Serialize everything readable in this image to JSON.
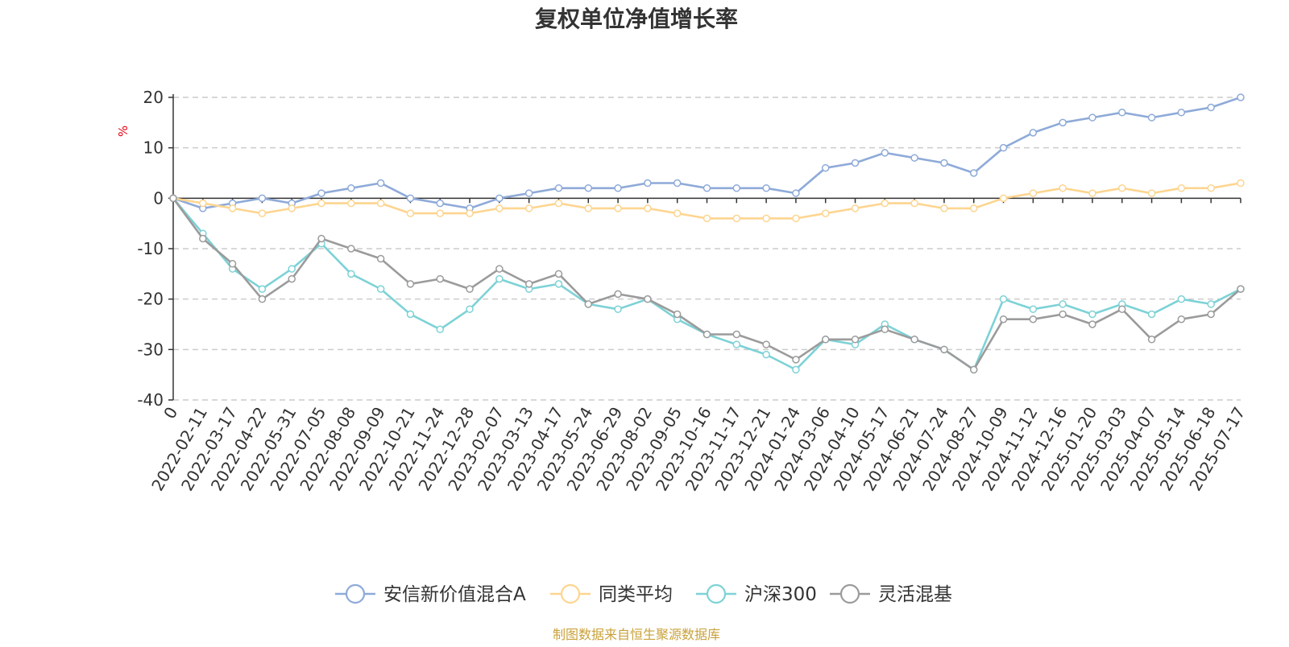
{
  "chart_data": {
    "type": "line",
    "title": "复权单位净值增长率",
    "ylabel": "%",
    "ylim": [
      -40,
      20
    ],
    "yticks": [
      -40,
      -30,
      -20,
      -10,
      0,
      10,
      20
    ],
    "x": [
      "0",
      "2022-02-11",
      "2022-03-17",
      "2022-04-22",
      "2022-05-31",
      "2022-07-05",
      "2022-08-08",
      "2022-09-09",
      "2022-10-21",
      "2022-11-24",
      "2022-12-28",
      "2023-02-07",
      "2023-03-13",
      "2023-04-17",
      "2023-05-24",
      "2023-06-29",
      "2023-08-02",
      "2023-09-05",
      "2023-10-16",
      "2023-11-17",
      "2023-12-21",
      "2024-01-24",
      "2024-03-06",
      "2024-04-10",
      "2024-05-17",
      "2024-06-21",
      "2024-07-24",
      "2024-08-27",
      "2024-10-09",
      "2024-11-12",
      "2024-12-16",
      "2025-01-20",
      "2025-03-03",
      "2025-04-07",
      "2025-05-14",
      "2025-06-18",
      "2025-07-17"
    ],
    "grid": true,
    "legend_position": "bottom",
    "series": [
      {
        "name": "安信新价值混合A",
        "color": "#8eaad8",
        "values": [
          0,
          -2,
          -1,
          0,
          -1,
          1,
          2,
          3,
          0,
          -1,
          -2,
          0,
          1,
          2,
          2,
          2,
          3,
          3,
          2,
          2,
          2,
          1,
          6,
          7,
          9,
          8,
          7,
          5,
          10,
          13,
          15,
          16,
          17,
          16,
          17,
          18,
          20
        ]
      },
      {
        "name": "同类平均",
        "color": "#fdd590",
        "values": [
          0,
          -1,
          -2,
          -3,
          -2,
          -1,
          -1,
          -1,
          -3,
          -3,
          -3,
          -2,
          -2,
          -1,
          -2,
          -2,
          -2,
          -3,
          -4,
          -4,
          -4,
          -4,
          -3,
          -2,
          -1,
          -1,
          -2,
          -2,
          0,
          1,
          2,
          1,
          2,
          1,
          2,
          2,
          3
        ]
      },
      {
        "name": "沪深300",
        "color": "#7dd2d6",
        "values": [
          0,
          -7,
          -14,
          -18,
          -14,
          -9,
          -15,
          -18,
          -23,
          -26,
          -22,
          -16,
          -18,
          -17,
          -21,
          -22,
          -20,
          -24,
          -27,
          -29,
          -31,
          -34,
          -28,
          -29,
          -25,
          -28,
          -30,
          -34,
          -20,
          -22,
          -21,
          -23,
          -21,
          -23,
          -20,
          -21,
          -18
        ]
      },
      {
        "name": "灵活混基",
        "color": "#9b9b9b",
        "values": [
          0,
          -8,
          -13,
          -20,
          -16,
          -8,
          -10,
          -12,
          -17,
          -16,
          -18,
          -14,
          -17,
          -15,
          -21,
          -19,
          -20,
          -23,
          -27,
          -27,
          -29,
          -32,
          -28,
          -28,
          -26,
          -28,
          -30,
          -34,
          -24,
          -24,
          -23,
          -25,
          -22,
          -28,
          -24,
          -23,
          -18
        ]
      }
    ]
  },
  "footer": {
    "source": "制图数据来自恒生聚源数据库"
  },
  "colors": {
    "axis": "#333333",
    "grid": "#cccccc",
    "ylabel": "#e60012",
    "source": "#c9a23b"
  }
}
